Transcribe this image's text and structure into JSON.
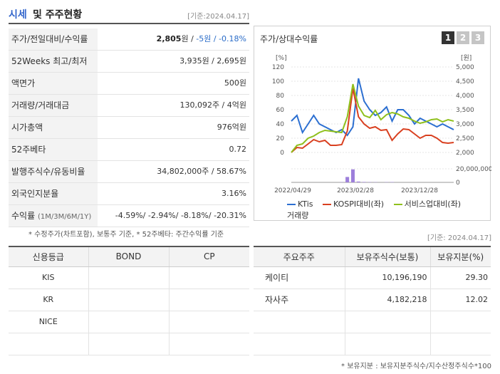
{
  "header": {
    "title_a": "시세",
    "title_b": "및 주주현황",
    "date": "[기준:2024.04.17]"
  },
  "info": [
    {
      "label": "주가/전일대비/수익률",
      "price": "2,805",
      "unit": "원 / ",
      "change": "-5원 / -0.18%"
    },
    {
      "label": "52Weeks 최고/최저",
      "value": "3,935원 / 2,695원"
    },
    {
      "label": "액면가",
      "value": "500원"
    },
    {
      "label": "거래량/거래대금",
      "value": "130,092주 / 4억원"
    },
    {
      "label": "시가총액",
      "value": "976억원"
    },
    {
      "label": "52주베타",
      "value": "0.72"
    },
    {
      "label": "발행주식수/유동비율",
      "value": "34,802,000주 / 58.67%"
    },
    {
      "label": "외국인지분율",
      "value": "3.16%"
    },
    {
      "label": "수익률",
      "sublabel": "(1M/3M/6M/1Y)",
      "returns": "-4.59%/ -2.94%/ -8.18%/ -20.31%"
    }
  ],
  "note1": "* 수정주가(차트포함), 보통주 기준, * 52주베타: 주간수익률 기준",
  "chart_panel": {
    "title": "주가/상대수익률",
    "tabs": [
      "1",
      "2",
      "3"
    ],
    "active_tab": "1",
    "left_axis_unit": "[%]",
    "right_axis_unit": "[원]"
  },
  "chart_data": {
    "type": "line",
    "x_tick_labels": [
      "2022/04/29",
      "2023/02/28",
      "2023/12/28"
    ],
    "y_left_ticks": [
      "120",
      "100",
      "80",
      "60",
      "40",
      "20",
      "0"
    ],
    "y_right_ticks": [
      "5,000",
      "4,500",
      "4,000",
      "3,500",
      "3,000",
      "2,500",
      "2,000"
    ],
    "volume_ticks": [
      "20,000,000",
      "0"
    ],
    "ylim_left": [
      0,
      120
    ],
    "ylim_right": [
      2000,
      5000
    ],
    "series": [
      {
        "name": "KTis",
        "color": "#2c6fd1",
        "values": [
          3.1,
          3.3,
          2.7,
          3.0,
          3.3,
          3.0,
          2.9,
          2.8,
          2.7,
          2.8,
          2.6,
          2.9,
          4.6,
          3.8,
          3.5,
          3.3,
          3.4,
          3.6,
          3.1,
          3.5,
          3.5,
          3.3,
          3.0,
          3.2,
          3.1,
          3.0,
          2.9,
          3.0,
          2.9,
          2.8
        ]
      },
      {
        "name": "KOSPI대비(좌)",
        "color": "#d94020",
        "values": [
          0,
          7,
          6,
          12,
          18,
          15,
          17,
          10,
          10,
          11,
          30,
          90,
          50,
          40,
          34,
          36,
          31,
          32,
          17,
          26,
          33,
          32,
          26,
          20,
          24,
          24,
          20,
          14,
          13,
          14
        ]
      },
      {
        "name": "서비스업대비(좌)",
        "color": "#8fc01c",
        "values": [
          0,
          10,
          12,
          20,
          23,
          28,
          31,
          30,
          29,
          28,
          50,
          96,
          65,
          52,
          49,
          59,
          46,
          53,
          56,
          54,
          50,
          48,
          44,
          41,
          43,
          46,
          47,
          43,
          46,
          44
        ]
      },
      {
        "name": "거래량",
        "color": "#9d7fdb",
        "type": "bar",
        "values": [
          0.1,
          0.1,
          0.1,
          0.1,
          0.1,
          0.1,
          0.1,
          0.1,
          0.2,
          0.5,
          10,
          24,
          1.5,
          0.8,
          0.5,
          0.4,
          0.3,
          0.4,
          0.6,
          0.3,
          0.3,
          0.2,
          0.3,
          0.3,
          0.2,
          0.2,
          0.2,
          0.2,
          0.2,
          0.1
        ]
      }
    ],
    "legend": [
      "KTis",
      "KOSPI대비(좌)",
      "서비스업대비(좌)",
      "거래량"
    ]
  },
  "date2": "[기준: 2024.04.17]",
  "credit": {
    "headers": [
      "신용등급",
      "BOND",
      "CP"
    ],
    "rows": [
      "KIS",
      "KR",
      "NICE",
      ""
    ]
  },
  "holders": {
    "headers": [
      "주요주주",
      "보유주식수(보통)",
      "보유지분(%)"
    ],
    "rows": [
      {
        "name": "케이티",
        "shares": "10,196,190",
        "pct": "29.30"
      },
      {
        "name": "자사주",
        "shares": "4,182,218",
        "pct": "12.02"
      },
      {
        "name": "",
        "shares": "",
        "pct": ""
      },
      {
        "name": "",
        "shares": "",
        "pct": ""
      }
    ]
  },
  "note2": "* 보유지분 : 보유지분주식수/지수산정주식수*100"
}
